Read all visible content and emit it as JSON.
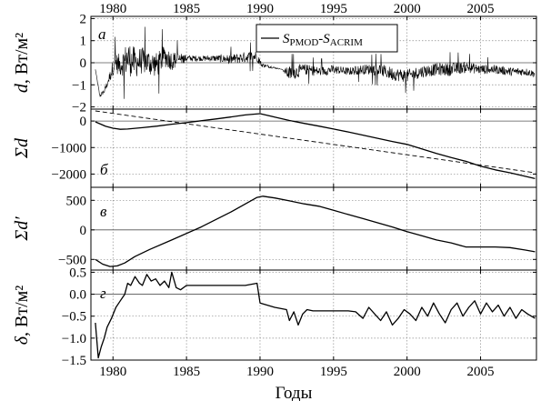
{
  "chart_data": [
    {
      "type": "line",
      "panel": "а",
      "ylabel_symbol": "d",
      "ylabel_unit": "Вт/м²",
      "ylim": [
        -2.1,
        2.1
      ],
      "yticks": [
        -2,
        -1,
        0,
        1,
        2
      ],
      "xlim": [
        1978.5,
        2008.8
      ],
      "legend": {
        "position": "top-center",
        "label_parts": [
          "S",
          "PMOD",
          "-S",
          "ACRIM"
        ]
      },
      "series": [
        {
          "style": "noisy",
          "x": [
            1978.8,
            1979.1,
            1979.4,
            1979.8,
            1980.1,
            1980.5,
            1981,
            1981.5,
            1982,
            1982.5,
            1983,
            1983.5,
            1984,
            1984.5,
            1985,
            1986,
            1987,
            1988,
            1989,
            1989.8,
            1990.1,
            1991.5,
            1992,
            1993,
            1994,
            1995,
            1996,
            1997,
            1998,
            1999,
            2000,
            2001,
            2002,
            2003,
            2004,
            2005,
            2006,
            2007,
            2008,
            2008.7
          ],
          "y": [
            -0.3,
            -1.5,
            -1.3,
            -0.6,
            0.0,
            -0.1,
            0.2,
            0.0,
            0.1,
            0.0,
            -0.1,
            0.3,
            0.1,
            0.15,
            0.2,
            0.2,
            0.2,
            0.15,
            0.25,
            0.3,
            -0.1,
            -0.3,
            -0.5,
            -0.3,
            -0.4,
            -0.3,
            -0.4,
            -0.3,
            -0.3,
            -0.5,
            -0.6,
            -0.4,
            -0.3,
            -0.3,
            -0.2,
            -0.3,
            -0.3,
            -0.4,
            -0.4,
            -0.5
          ],
          "noise": [
            0,
            0.1,
            0.1,
            0.25,
            0.45,
            0.5,
            0.8,
            0.7,
            0.6,
            0.6,
            0.55,
            0.5,
            0.45,
            0.3,
            0.15,
            0.12,
            0.15,
            0.22,
            0.25,
            0.25,
            0.1,
            0,
            0.35,
            0.25,
            0.22,
            0.2,
            0.18,
            0.22,
            0.28,
            0.3,
            0.3,
            0.28,
            0.28,
            0.3,
            0.25,
            0.22,
            0.2,
            0.2,
            0.18,
            0.15
          ]
        }
      ]
    },
    {
      "type": "line",
      "panel": "б",
      "ylabel_symbol": "Σd",
      "ylim": [
        -2500,
        450
      ],
      "yticks": [
        -2000,
        -1000,
        0
      ],
      "xlim": [
        1978.5,
        2008.8
      ],
      "series": [
        {
          "style": "solid",
          "x": [
            1978.8,
            1979.5,
            1980,
            1980.5,
            1981,
            1982,
            1983,
            1984,
            1985,
            1986,
            1987,
            1988,
            1989,
            1990,
            1991,
            1992,
            1993,
            1994,
            1995,
            1996,
            1997,
            1998,
            1999,
            2000,
            2001,
            2002,
            2003,
            2004,
            2005,
            2006,
            2007,
            2008,
            2008.7
          ],
          "y": [
            -30,
            -200,
            -270,
            -310,
            -300,
            -250,
            -190,
            -120,
            -60,
            10,
            80,
            150,
            230,
            280,
            150,
            20,
            -90,
            -190,
            -300,
            -410,
            -530,
            -650,
            -770,
            -880,
            -1050,
            -1220,
            -1380,
            -1520,
            -1700,
            -1840,
            -1950,
            -2080,
            -2170
          ]
        },
        {
          "style": "dashed",
          "x": [
            1978.8,
            2008.7
          ],
          "y": [
            380,
            -1950
          ]
        }
      ]
    },
    {
      "type": "line",
      "panel": "в",
      "ylabel_symbol": "Σd′",
      "ylim": [
        -680,
        720
      ],
      "yticks": [
        -500,
        0,
        500
      ],
      "xlim": [
        1978.5,
        2008.8
      ],
      "series": [
        {
          "style": "solid",
          "x": [
            1978.8,
            1979.3,
            1979.8,
            1980.3,
            1980.8,
            1981.5,
            1982.5,
            1984,
            1986,
            1988,
            1989.8,
            1990.2,
            1991,
            1992,
            1993,
            1994,
            1995,
            1996,
            1997,
            1998,
            1999,
            2000,
            2001,
            2002,
            2003,
            2004,
            2004.5,
            2005,
            2006,
            2007,
            2008,
            2008.7
          ],
          "y": [
            -500,
            -580,
            -620,
            -610,
            -560,
            -450,
            -330,
            -170,
            50,
            300,
            550,
            570,
            540,
            490,
            440,
            400,
            330,
            260,
            190,
            120,
            50,
            -30,
            -100,
            -170,
            -220,
            -290,
            -290,
            -290,
            -290,
            -300,
            -340,
            -370
          ]
        }
      ]
    },
    {
      "type": "line",
      "panel": "г",
      "ylabel_symbol": "δ",
      "ylabel_unit": "Вт/м²",
      "ylim": [
        -1.5,
        0.55
      ],
      "yticks": [
        -1.5,
        -1.0,
        -0.5,
        0.0,
        0.5
      ],
      "xlim": [
        1978.5,
        2008.8
      ],
      "series": [
        {
          "style": "solid",
          "x": [
            1978.8,
            1979.0,
            1979.2,
            1979.4,
            1979.6,
            1979.9,
            1980.2,
            1980.5,
            1980.8,
            1981.0,
            1981.2,
            1981.5,
            1981.8,
            1982.0,
            1982.3,
            1982.6,
            1982.9,
            1983.2,
            1983.5,
            1983.8,
            1984.0,
            1984.3,
            1984.6,
            1985,
            1986,
            1987,
            1988,
            1989,
            1989.8,
            1990.0,
            1991,
            1991.8,
            1992.0,
            1992.3,
            1992.6,
            1992.9,
            1993.2,
            1993.6,
            1994,
            1995,
            1996,
            1996.5,
            1997,
            1997.4,
            1997.8,
            1998.2,
            1998.6,
            1999,
            1999.4,
            1999.8,
            2000.2,
            2000.6,
            2001,
            2001.4,
            2001.8,
            2002.2,
            2002.6,
            2003,
            2003.4,
            2003.8,
            2004.2,
            2004.6,
            2005,
            2005.4,
            2005.8,
            2006.2,
            2006.6,
            2007,
            2007.4,
            2007.8,
            2008.2,
            2008.7
          ],
          "y": [
            -0.65,
            -1.45,
            -1.2,
            -1.0,
            -0.75,
            -0.55,
            -0.3,
            -0.15,
            0.0,
            0.25,
            0.2,
            0.4,
            0.25,
            0.2,
            0.45,
            0.3,
            0.35,
            0.2,
            0.3,
            0.15,
            0.5,
            0.15,
            0.1,
            0.2,
            0.2,
            0.2,
            0.2,
            0.2,
            0.25,
            -0.2,
            -0.3,
            -0.35,
            -0.6,
            -0.4,
            -0.7,
            -0.45,
            -0.35,
            -0.38,
            -0.38,
            -0.38,
            -0.38,
            -0.4,
            -0.55,
            -0.3,
            -0.45,
            -0.6,
            -0.4,
            -0.7,
            -0.55,
            -0.35,
            -0.45,
            -0.6,
            -0.3,
            -0.5,
            -0.2,
            -0.45,
            -0.65,
            -0.35,
            -0.2,
            -0.5,
            -0.3,
            -0.15,
            -0.45,
            -0.2,
            -0.4,
            -0.25,
            -0.5,
            -0.3,
            -0.55,
            -0.35,
            -0.45,
            -0.55
          ]
        }
      ]
    }
  ],
  "x_axis": {
    "label": "Годы",
    "ticks": [
      1980,
      1985,
      1990,
      1995,
      2000,
      2005
    ]
  },
  "colors": {
    "line": "#000000",
    "grid": "#8c8c8c",
    "frame": "#000000"
  }
}
